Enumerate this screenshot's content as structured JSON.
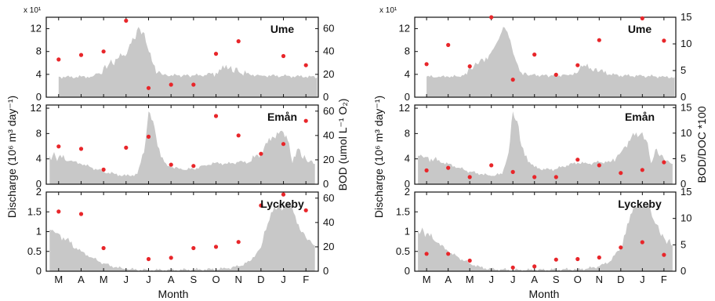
{
  "figure": {
    "left_ylabel": "Discharge (10⁶ m³ day⁻¹)",
    "xlabel": "Month",
    "multiplier": "x 10¹",
    "colors": {
      "area": "#c8c8c8",
      "dot": "#e8262a",
      "axis": "#111111"
    }
  },
  "chart_data": [
    {
      "type": "area",
      "panel": "left",
      "station": "Ume",
      "ylabel_right": "",
      "months": [
        "M",
        "A",
        "M",
        "J",
        "J",
        "A",
        "S",
        "O",
        "N",
        "D",
        "J",
        "F"
      ],
      "left_ylim": [
        0,
        14
      ],
      "left_ticks": [
        "0",
        "4",
        "8",
        "12"
      ],
      "left_tick_vals": [
        0,
        4,
        8,
        12
      ],
      "right_ylim": [
        0,
        70
      ],
      "right_ticks": [
        "0",
        "20",
        "40",
        "60"
      ],
      "right_tick_vals": [
        0,
        20,
        40,
        60
      ],
      "discharge": [
        [
          0,
          3.6
        ],
        [
          0.5,
          3.5
        ],
        [
          1,
          3.6
        ],
        [
          1.5,
          3.6
        ],
        [
          1.8,
          4.2
        ],
        [
          2.2,
          5.5
        ],
        [
          2.6,
          6.7
        ],
        [
          2.9,
          7.4
        ],
        [
          3.1,
          8.5
        ],
        [
          3.35,
          10.2
        ],
        [
          3.55,
          12.3
        ],
        [
          3.75,
          11.4
        ],
        [
          3.95,
          8.8
        ],
        [
          4.15,
          6.3
        ],
        [
          4.4,
          4.3
        ],
        [
          4.8,
          3.9
        ],
        [
          5.3,
          3.8
        ],
        [
          6,
          3.8
        ],
        [
          6.5,
          3.9
        ],
        [
          7,
          4.3
        ],
        [
          7.3,
          5.6
        ],
        [
          7.6,
          5.1
        ],
        [
          8,
          4.5
        ],
        [
          8.5,
          4.0
        ],
        [
          9,
          3.8
        ],
        [
          10,
          3.7
        ],
        [
          11,
          3.6
        ],
        [
          11.5,
          3.5
        ]
      ],
      "points": [
        [
          0,
          33
        ],
        [
          1,
          37
        ],
        [
          2,
          40
        ],
        [
          3,
          67
        ],
        [
          4,
          8
        ],
        [
          5,
          11
        ],
        [
          6,
          11
        ],
        [
          7,
          38
        ],
        [
          8,
          49
        ],
        [
          9,
          null
        ],
        [
          10,
          36
        ],
        [
          11,
          28
        ]
      ]
    },
    {
      "type": "area",
      "panel": "left",
      "station": "Emån",
      "ylabel_right": "BOD (umol L⁻¹ O₂)",
      "months": [
        "M",
        "A",
        "M",
        "J",
        "J",
        "A",
        "S",
        "O",
        "N",
        "D",
        "J",
        "F"
      ],
      "left_ylim": [
        0,
        12.5
      ],
      "left_ticks": [
        "0",
        "4",
        "8",
        "12"
      ],
      "left_tick_vals": [
        0,
        4,
        8,
        12
      ],
      "right_ylim": [
        0,
        65
      ],
      "right_ticks": [
        "0",
        "20",
        "40",
        "60"
      ],
      "right_tick_vals": [
        0,
        20,
        40,
        60
      ],
      "discharge": [
        [
          -0.4,
          4.5
        ],
        [
          0,
          4.3
        ],
        [
          0.5,
          3.7
        ],
        [
          1,
          3.2
        ],
        [
          1.5,
          2.6
        ],
        [
          2,
          2.0
        ],
        [
          2.5,
          1.6
        ],
        [
          3,
          1.3
        ],
        [
          3.5,
          1.6
        ],
        [
          3.8,
          5.0
        ],
        [
          4.0,
          11.5
        ],
        [
          4.2,
          10.0
        ],
        [
          4.4,
          6.0
        ],
        [
          4.7,
          3.5
        ],
        [
          5,
          2.7
        ],
        [
          5.5,
          2.3
        ],
        [
          6,
          2.4
        ],
        [
          6.5,
          3.0
        ],
        [
          7,
          3.4
        ],
        [
          7.5,
          3.2
        ],
        [
          8,
          3.5
        ],
        [
          8.5,
          3.5
        ],
        [
          9,
          5.0
        ],
        [
          9.5,
          7.5
        ],
        [
          10,
          8.2
        ],
        [
          10.25,
          6.5
        ],
        [
          10.4,
          3.3
        ],
        [
          10.6,
          5.5
        ],
        [
          11,
          4.0
        ],
        [
          11.4,
          3.2
        ]
      ],
      "points": [
        [
          0,
          31
        ],
        [
          1,
          29
        ],
        [
          2,
          12
        ],
        [
          3,
          30
        ],
        [
          4,
          39
        ],
        [
          5,
          16
        ],
        [
          6,
          15
        ],
        [
          7,
          56
        ],
        [
          8,
          40
        ],
        [
          9,
          25
        ],
        [
          10,
          33
        ],
        [
          11,
          52
        ]
      ]
    },
    {
      "type": "area",
      "panel": "left",
      "station": "Lyckeby",
      "ylabel_right": "",
      "months": [
        "M",
        "A",
        "M",
        "J",
        "J",
        "A",
        "S",
        "O",
        "N",
        "D",
        "J",
        "F"
      ],
      "left_ylim": [
        0,
        2
      ],
      "left_ticks": [
        "0",
        "0.5",
        "1",
        "1.5",
        "2"
      ],
      "left_tick_vals": [
        0,
        0.5,
        1,
        1.5,
        2
      ],
      "right_ylim": [
        0,
        65
      ],
      "right_ticks": [
        "0",
        "20",
        "40",
        "60"
      ],
      "right_tick_vals": [
        0,
        20,
        40,
        60
      ],
      "discharge": [
        [
          -0.4,
          1.05
        ],
        [
          0,
          0.95
        ],
        [
          0.5,
          0.72
        ],
        [
          1,
          0.5
        ],
        [
          1.5,
          0.34
        ],
        [
          2,
          0.2
        ],
        [
          2.5,
          0.1
        ],
        [
          3,
          0.05
        ],
        [
          4,
          0.03
        ],
        [
          5,
          0.03
        ],
        [
          6,
          0.04
        ],
        [
          7,
          0.05
        ],
        [
          7.5,
          0.07
        ],
        [
          8,
          0.12
        ],
        [
          8.5,
          0.25
        ],
        [
          9,
          0.6
        ],
        [
          9.3,
          1.2
        ],
        [
          9.6,
          1.65
        ],
        [
          10,
          1.6
        ],
        [
          10.3,
          1.7
        ],
        [
          10.6,
          1.2
        ],
        [
          11,
          0.85
        ],
        [
          11.4,
          0.65
        ]
      ],
      "points": [
        [
          0,
          49
        ],
        [
          1,
          47
        ],
        [
          2,
          19
        ],
        [
          3,
          null
        ],
        [
          4,
          10
        ],
        [
          5,
          11
        ],
        [
          6,
          19
        ],
        [
          7,
          20
        ],
        [
          8,
          24
        ],
        [
          9,
          54
        ],
        [
          10,
          63
        ],
        [
          11,
          50
        ]
      ]
    },
    {
      "type": "area",
      "panel": "right",
      "station": "Ume",
      "ylabel_right": "",
      "months": [
        "M",
        "A",
        "M",
        "J",
        "J",
        "A",
        "S",
        "O",
        "N",
        "D",
        "J",
        "F"
      ],
      "left_ylim": [
        0,
        14
      ],
      "left_ticks": [
        "0",
        "4",
        "8",
        "12"
      ],
      "left_tick_vals": [
        0,
        4,
        8,
        12
      ],
      "right_ylim": [
        0,
        15
      ],
      "right_ticks": [
        "0",
        "5",
        "10",
        "15"
      ],
      "right_tick_vals": [
        0,
        5,
        10,
        15
      ],
      "discharge": [
        [
          0,
          3.6
        ],
        [
          0.5,
          3.5
        ],
        [
          1,
          3.6
        ],
        [
          1.5,
          3.6
        ],
        [
          1.8,
          4.2
        ],
        [
          2.2,
          5.5
        ],
        [
          2.6,
          6.7
        ],
        [
          2.9,
          7.4
        ],
        [
          3.1,
          8.5
        ],
        [
          3.35,
          10.2
        ],
        [
          3.55,
          12.3
        ],
        [
          3.75,
          11.4
        ],
        [
          3.95,
          8.8
        ],
        [
          4.15,
          6.3
        ],
        [
          4.4,
          4.3
        ],
        [
          4.8,
          3.9
        ],
        [
          5.3,
          3.8
        ],
        [
          6,
          3.8
        ],
        [
          6.5,
          3.9
        ],
        [
          7,
          4.3
        ],
        [
          7.3,
          5.6
        ],
        [
          7.6,
          5.1
        ],
        [
          8,
          4.5
        ],
        [
          8.5,
          4.0
        ],
        [
          9,
          3.8
        ],
        [
          10,
          3.7
        ],
        [
          11,
          3.6
        ],
        [
          11.5,
          3.5
        ]
      ],
      "points": [
        [
          0,
          6.2
        ],
        [
          1,
          9.8
        ],
        [
          2,
          5.8
        ],
        [
          3,
          15.0
        ],
        [
          4,
          3.3
        ],
        [
          5,
          8.0
        ],
        [
          6,
          4.2
        ],
        [
          7,
          6.0
        ],
        [
          8,
          10.7
        ],
        [
          9,
          null
        ],
        [
          10,
          14.8
        ],
        [
          11,
          10.6
        ]
      ]
    },
    {
      "type": "area",
      "panel": "right",
      "station": "Emån",
      "ylabel_right": "BOD/DOC *100",
      "months": [
        "M",
        "A",
        "M",
        "J",
        "J",
        "A",
        "S",
        "O",
        "N",
        "D",
        "J",
        "F"
      ],
      "left_ylim": [
        0,
        12.5
      ],
      "left_ticks": [
        "0",
        "4",
        "8",
        "12"
      ],
      "left_tick_vals": [
        0,
        4,
        8,
        12
      ],
      "right_ylim": [
        0,
        15.5
      ],
      "right_ticks": [
        "0",
        "5",
        "10",
        "15"
      ],
      "right_tick_vals": [
        0,
        5,
        10,
        15
      ],
      "discharge": [
        [
          -0.4,
          4.5
        ],
        [
          0,
          4.3
        ],
        [
          0.5,
          3.7
        ],
        [
          1,
          3.2
        ],
        [
          1.5,
          2.6
        ],
        [
          2,
          2.0
        ],
        [
          2.5,
          1.6
        ],
        [
          3,
          1.3
        ],
        [
          3.5,
          1.6
        ],
        [
          3.8,
          5.0
        ],
        [
          4.0,
          11.5
        ],
        [
          4.2,
          10.0
        ],
        [
          4.4,
          6.0
        ],
        [
          4.7,
          3.5
        ],
        [
          5,
          2.7
        ],
        [
          5.5,
          2.3
        ],
        [
          6,
          2.4
        ],
        [
          6.5,
          3.0
        ],
        [
          7,
          3.4
        ],
        [
          7.5,
          3.2
        ],
        [
          8,
          3.5
        ],
        [
          8.5,
          3.5
        ],
        [
          9,
          5.0
        ],
        [
          9.5,
          7.5
        ],
        [
          10,
          8.2
        ],
        [
          10.25,
          6.5
        ],
        [
          10.4,
          3.3
        ],
        [
          10.6,
          5.5
        ],
        [
          11,
          4.0
        ],
        [
          11.4,
          3.2
        ]
      ],
      "points": [
        [
          0,
          2.7
        ],
        [
          1,
          3.2
        ],
        [
          2,
          1.4
        ],
        [
          3,
          3.7
        ],
        [
          4,
          2.4
        ],
        [
          5,
          1.4
        ],
        [
          6,
          1.4
        ],
        [
          7,
          4.8
        ],
        [
          8,
          3.7
        ],
        [
          9,
          2.2
        ],
        [
          10,
          2.8
        ],
        [
          11,
          4.3
        ]
      ]
    },
    {
      "type": "area",
      "panel": "right",
      "station": "Lyckeby",
      "ylabel_right": "",
      "months": [
        "M",
        "A",
        "M",
        "J",
        "J",
        "A",
        "S",
        "O",
        "N",
        "D",
        "J",
        "F"
      ],
      "left_ylim": [
        0,
        2
      ],
      "left_ticks": [
        "0",
        "0.5",
        "1",
        "1.5",
        "2"
      ],
      "left_tick_vals": [
        0,
        0.5,
        1,
        1.5,
        2
      ],
      "right_ylim": [
        0,
        15
      ],
      "right_ticks": [
        "0",
        "5",
        "10",
        "15"
      ],
      "right_tick_vals": [
        0,
        5,
        10,
        15
      ],
      "discharge": [
        [
          -0.4,
          1.05
        ],
        [
          0,
          0.95
        ],
        [
          0.5,
          0.72
        ],
        [
          1,
          0.5
        ],
        [
          1.5,
          0.34
        ],
        [
          2,
          0.2
        ],
        [
          2.5,
          0.1
        ],
        [
          3,
          0.05
        ],
        [
          4,
          0.03
        ],
        [
          5,
          0.03
        ],
        [
          6,
          0.04
        ],
        [
          7,
          0.05
        ],
        [
          7.5,
          0.07
        ],
        [
          8,
          0.12
        ],
        [
          8.5,
          0.25
        ],
        [
          9,
          0.6
        ],
        [
          9.3,
          1.2
        ],
        [
          9.6,
          1.65
        ],
        [
          10,
          1.6
        ],
        [
          10.3,
          1.7
        ],
        [
          10.6,
          1.2
        ],
        [
          11,
          0.85
        ],
        [
          11.4,
          0.65
        ]
      ],
      "points": [
        [
          0,
          3.3
        ],
        [
          1,
          3.3
        ],
        [
          2,
          2.0
        ],
        [
          3,
          null
        ],
        [
          4,
          0.7
        ],
        [
          5,
          0.9
        ],
        [
          6,
          2.2
        ],
        [
          7,
          2.3
        ],
        [
          8,
          2.6
        ],
        [
          9,
          4.5
        ],
        [
          10,
          5.5
        ],
        [
          11,
          3.1
        ]
      ]
    }
  ]
}
